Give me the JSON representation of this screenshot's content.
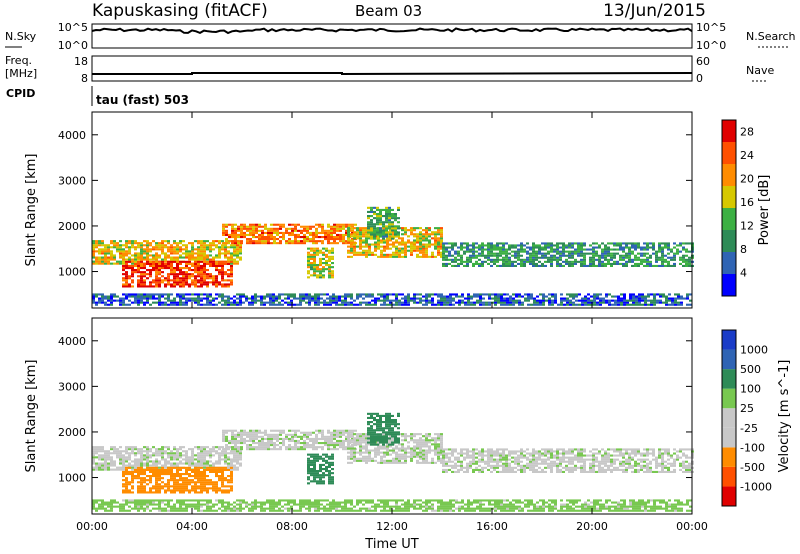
{
  "header": {
    "station": "Kapuskasing (fitACF)",
    "beam": "Beam 03",
    "date": "13/Jun/2015"
  },
  "noise_panel": {
    "left_label": "N.Sky",
    "right_label": "N.Search",
    "left_top_tick": "10^5",
    "left_bottom_tick": "10^0",
    "right_top_tick": "10^5",
    "right_bottom_tick": "10^0"
  },
  "freq_panel": {
    "left_label_line1": "Freq.",
    "left_label_line2": "[MHz]",
    "left_top_tick": "18",
    "left_bottom_tick": "8",
    "right_label": "Nave",
    "right_top_tick": "60",
    "right_bottom_tick": "0"
  },
  "cpid": {
    "label": "CPID",
    "value": "tau (fast) 503"
  },
  "colors": {
    "power": [
      "#0000ff",
      "#2f64b4",
      "#2e8b57",
      "#3cb043",
      "#d6c800",
      "#ff8c00",
      "#ff5000",
      "#e00000"
    ],
    "velocity": [
      "#e00000",
      "#ff5000",
      "#ff8c00",
      "#c8c8c8",
      "#c8c8c8",
      "#78c850",
      "#2e8b57",
      "#2f64b4",
      "#1a3cc8"
    ]
  },
  "chart_data": [
    {
      "type": "heatmap",
      "title": "",
      "xlabel": "Time UT",
      "ylabel": "Slant Range [km]",
      "xlim": [
        "00:00",
        "24:00"
      ],
      "ylim": [
        200,
        4500
      ],
      "x_ticks": [
        "00:00",
        "04:00",
        "08:00",
        "12:00",
        "16:00",
        "20:00",
        "00:00"
      ],
      "y_ticks": [
        1000,
        2000,
        3000,
        4000
      ],
      "colorbar": {
        "label": "Power [dB]",
        "ticks": [
          4,
          8,
          12,
          16,
          20,
          24,
          28
        ],
        "range": [
          0,
          30
        ]
      },
      "regions": [
        {
          "t0": 0.0,
          "t1": 6.0,
          "r0": 1150,
          "r1": 1650,
          "value": 18
        },
        {
          "t0": 1.2,
          "t1": 5.6,
          "r0": 650,
          "r1": 1200,
          "value": 26
        },
        {
          "t0": 5.2,
          "t1": 10.5,
          "r0": 1600,
          "r1": 2050,
          "value": 22
        },
        {
          "t0": 8.6,
          "t1": 9.6,
          "r0": 850,
          "r1": 1500,
          "value": 16
        },
        {
          "t0": 10.2,
          "t1": 14.0,
          "r0": 1300,
          "r1": 1950,
          "value": 18
        },
        {
          "t0": 11.0,
          "t1": 12.2,
          "r0": 1700,
          "r1": 2400,
          "value": 12
        },
        {
          "t0": 14.0,
          "t1": 24.0,
          "r0": 1100,
          "r1": 1600,
          "value": 10
        },
        {
          "t0": 0.0,
          "t1": 24.0,
          "r0": 250,
          "r1": 500,
          "value": 6
        }
      ]
    },
    {
      "type": "heatmap",
      "title": "",
      "xlabel": "Time UT",
      "ylabel": "Slant Range [km]",
      "xlim": [
        "00:00",
        "24:00"
      ],
      "ylim": [
        200,
        4500
      ],
      "x_ticks": [
        "00:00",
        "04:00",
        "08:00",
        "12:00",
        "16:00",
        "20:00",
        "00:00"
      ],
      "y_ticks": [
        1000,
        2000,
        3000,
        4000
      ],
      "colorbar": {
        "label": "Velocity [m s^-1]",
        "ticks": [
          1000,
          500,
          100,
          25,
          -25,
          -100,
          -500,
          -1000
        ]
      },
      "regions": [
        {
          "t0": 0.0,
          "t1": 6.0,
          "r0": 1150,
          "r1": 1650,
          "value": 0
        },
        {
          "t0": 1.2,
          "t1": 5.6,
          "r0": 650,
          "r1": 1200,
          "value": -300
        },
        {
          "t0": 5.2,
          "t1": 10.5,
          "r0": 1600,
          "r1": 2050,
          "value": 0
        },
        {
          "t0": 8.6,
          "t1": 9.6,
          "r0": 850,
          "r1": 1500,
          "value": 300
        },
        {
          "t0": 10.2,
          "t1": 14.0,
          "r0": 1300,
          "r1": 1950,
          "value": 0
        },
        {
          "t0": 11.0,
          "t1": 12.2,
          "r0": 1700,
          "r1": 2400,
          "value": 200
        },
        {
          "t0": 14.0,
          "t1": 24.0,
          "r0": 1100,
          "r1": 1600,
          "value": 0
        },
        {
          "t0": 0.0,
          "t1": 24.0,
          "r0": 250,
          "r1": 500,
          "value": 60
        }
      ]
    }
  ]
}
